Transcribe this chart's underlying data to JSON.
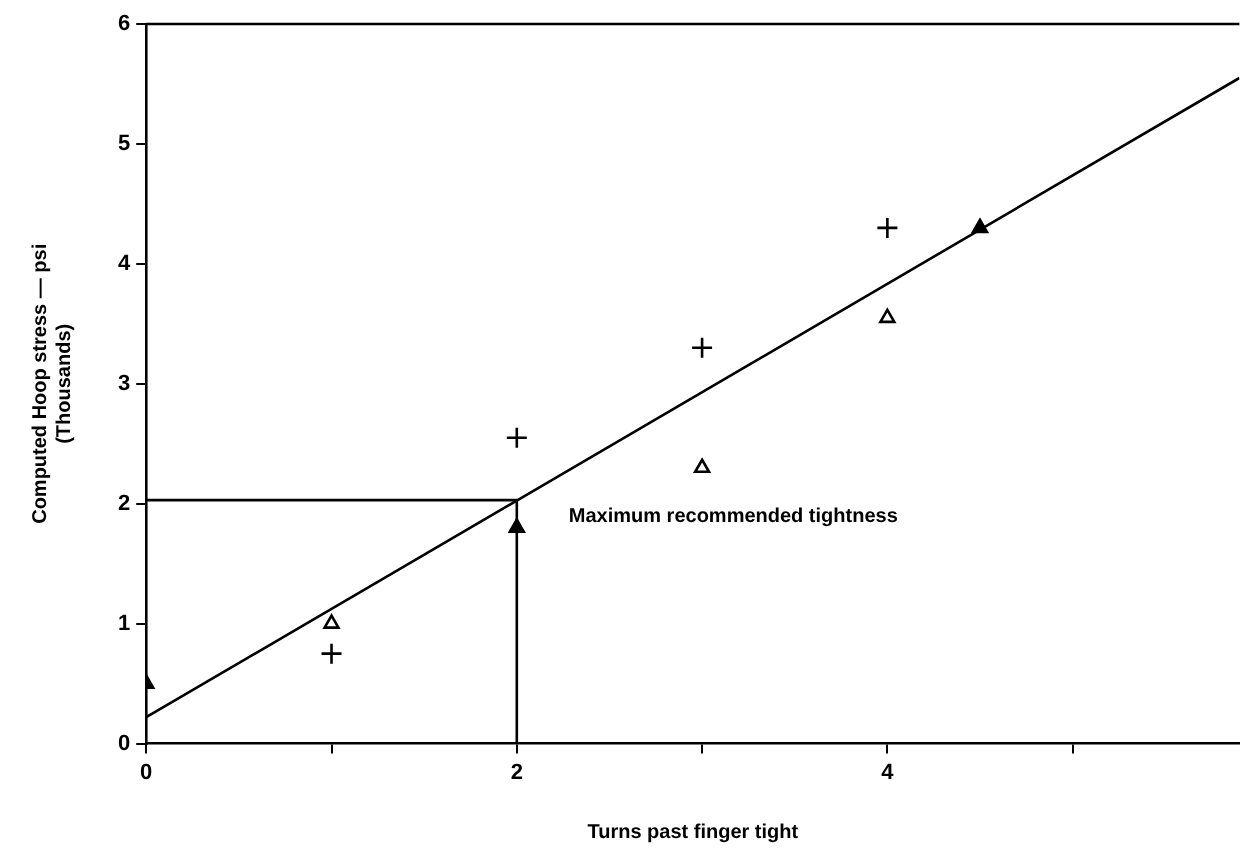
{
  "chart_data": {
    "type": "scatter",
    "xlabel": "Turns past finger tight",
    "ylabel": "Computed Hoop stress — psi\n(Thousands)",
    "xlim": [
      0,
      5.9
    ],
    "ylim": [
      0,
      6
    ],
    "xticks": [
      0,
      {
        "value": 1,
        "label": null
      },
      2,
      {
        "value": 3,
        "label": null
      },
      4,
      {
        "value": 5,
        "label": null
      }
    ],
    "yticks": [
      0,
      1,
      2,
      3,
      4,
      5,
      6
    ],
    "grid": false,
    "legend": false,
    "series": [
      {
        "marker": "cross",
        "color": "#000000",
        "x": [
          1,
          2,
          3,
          4
        ],
        "values": [
          0.75,
          2.55,
          3.3,
          4.3
        ]
      },
      {
        "marker": "triangle",
        "color": "#000000",
        "x": [
          1,
          3,
          4
        ],
        "values": [
          1.0,
          2.3,
          3.55
        ]
      },
      {
        "marker": "triangle",
        "color": "#000000",
        "x": [
          0,
          2,
          4.5
        ],
        "values": [
          0.5,
          1.8,
          4.3
        ]
      },
      {
        "type": "line",
        "marker": "none",
        "color": "#000000",
        "x": [
          0,
          5.9
        ],
        "values": [
          0.22,
          5.55
        ]
      },
      {
        "type": "line",
        "marker": "none",
        "color": "#000000",
        "x": [
          0,
          2,
          2
        ],
        "values": [
          2.03,
          2.03,
          0
        ]
      }
    ],
    "annotations": [
      {
        "text": "Maximum recommended tightness",
        "x": 2,
        "y": 2.03
      }
    ]
  }
}
